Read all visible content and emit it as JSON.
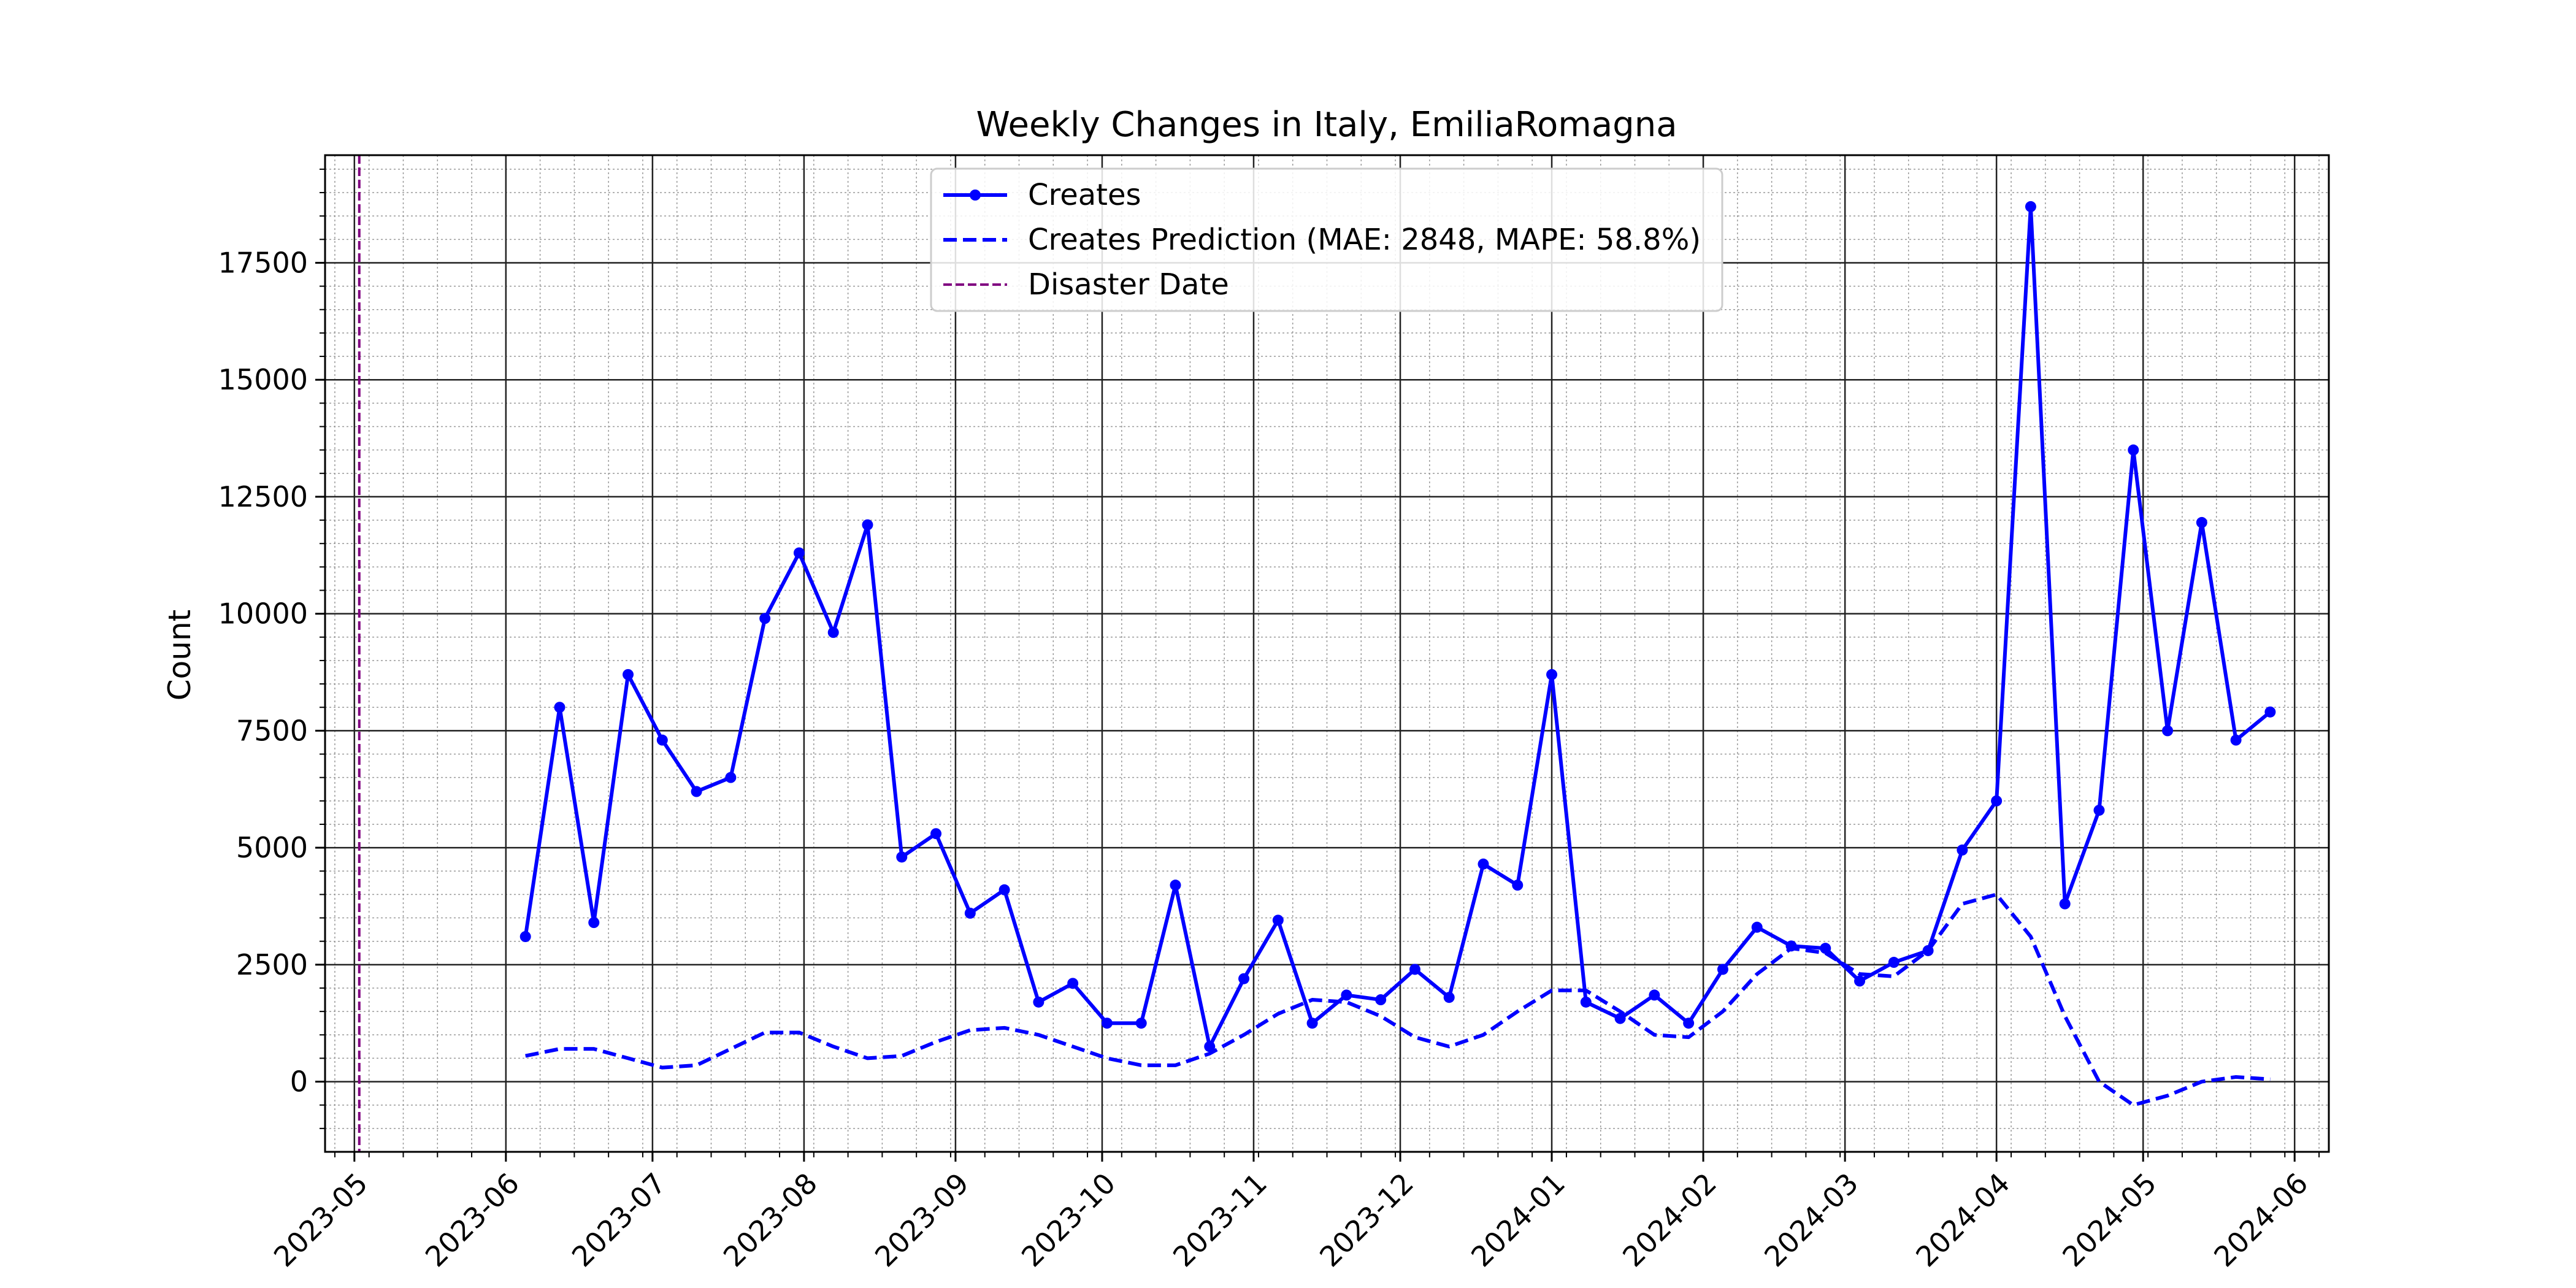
{
  "chart_data": {
    "type": "line",
    "title": "Weekly Changes in Italy, EmiliaRomagna",
    "xlabel": "",
    "ylabel": "Count",
    "xlim": [
      "2023-04-25",
      "2024-06-08"
    ],
    "ylim": [
      -1500,
      19800
    ],
    "x_tick_labels": [
      "2023-05",
      "2023-06",
      "2023-07",
      "2023-08",
      "2023-09",
      "2023-10",
      "2023-11",
      "2023-12",
      "2024-01",
      "2024-02",
      "2024-03",
      "2024-04",
      "2024-05",
      "2024-06"
    ],
    "y_ticks": [
      0,
      2500,
      5000,
      7500,
      10000,
      12500,
      15000,
      17500
    ],
    "grid": true,
    "legend_position": "top-center",
    "colors": {
      "creates": "#0000ff",
      "prediction": "#0000ff",
      "disaster": "#800080"
    },
    "dates": [
      "2023-06-05",
      "2023-06-12",
      "2023-06-19",
      "2023-06-26",
      "2023-07-03",
      "2023-07-10",
      "2023-07-17",
      "2023-07-24",
      "2023-07-31",
      "2023-08-07",
      "2023-08-14",
      "2023-08-21",
      "2023-08-28",
      "2023-09-04",
      "2023-09-11",
      "2023-09-18",
      "2023-09-25",
      "2023-10-02",
      "2023-10-09",
      "2023-10-16",
      "2023-10-23",
      "2023-10-30",
      "2023-11-06",
      "2023-11-13",
      "2023-11-20",
      "2023-11-27",
      "2023-12-04",
      "2023-12-11",
      "2023-12-18",
      "2023-12-25",
      "2024-01-01",
      "2024-01-08",
      "2024-01-15",
      "2024-01-22",
      "2024-01-29",
      "2024-02-05",
      "2024-02-12",
      "2024-02-19",
      "2024-02-26",
      "2024-03-04",
      "2024-03-11",
      "2024-03-18",
      "2024-03-25",
      "2024-04-01",
      "2024-04-08",
      "2024-04-15",
      "2024-04-22",
      "2024-04-29",
      "2024-05-06",
      "2024-05-13",
      "2024-05-20",
      "2024-05-27"
    ],
    "series": [
      {
        "name": "Creates",
        "style": "solid-markers",
        "values": [
          3100,
          8000,
          3400,
          8700,
          7300,
          6200,
          6500,
          9900,
          11300,
          9600,
          11900,
          4800,
          5300,
          3600,
          4100,
          1700,
          2100,
          1250,
          1250,
          4200,
          750,
          2200,
          3450,
          1250,
          1850,
          1750,
          2400,
          1800,
          4650,
          4200,
          8700,
          1700,
          1350,
          1850,
          1250,
          2400,
          3300,
          2900,
          2850,
          2150,
          2550,
          2800,
          4950,
          6000,
          18700,
          3800,
          5800,
          13500,
          7500,
          11950,
          7300,
          7900
        ]
      },
      {
        "name": "Creates Prediction (MAE: 2848, MAPE: 58.8%)",
        "style": "dashed",
        "values": [
          550,
          700,
          700,
          500,
          300,
          350,
          700,
          1050,
          1050,
          750,
          500,
          550,
          850,
          1100,
          1150,
          1000,
          750,
          500,
          350,
          350,
          600,
          1000,
          1450,
          1750,
          1700,
          1400,
          950,
          750,
          1000,
          1500,
          1950,
          1950,
          1500,
          1000,
          950,
          1500,
          2300,
          2850,
          2750,
          2300,
          2250,
          2800,
          3800,
          4000,
          3100,
          1400,
          0,
          -500,
          -300,
          0,
          100,
          50
        ]
      }
    ],
    "annotations": [
      {
        "name": "Disaster Date",
        "type": "vline",
        "x": "2023-05-02"
      }
    ]
  }
}
